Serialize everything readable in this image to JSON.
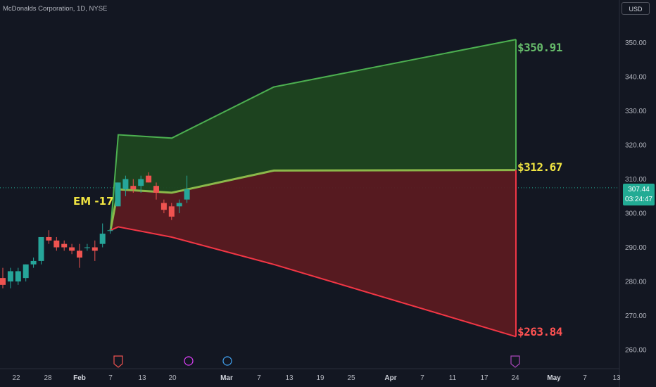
{
  "header": {
    "symbol_title": "McDonalds Corporation, 1D, NYSE",
    "currency": "USD"
  },
  "price_tag": {
    "price": "307.44",
    "countdown": "03:24:47"
  },
  "labels": {
    "em": "EM -17",
    "upper": "$350.91",
    "middle": "$312.67",
    "lower": "$263.84"
  },
  "colors": {
    "background": "#131722",
    "upper_band_fill": "#1e4620",
    "lower_band_fill": "#5a1a21",
    "upper_line": "#4caf50",
    "middle_line": "#8bb84a",
    "lower_line": "#f23645",
    "bull_candle": "#26a69a",
    "bear_candle": "#ef5350",
    "upper_label": "#66bb6a",
    "middle_label": "#f0e442",
    "lower_label": "#ff5252"
  },
  "chart_data": {
    "type": "candlestick",
    "title": "McDonalds Corporation, 1D, NYSE",
    "ylim": [
      255,
      360
    ],
    "y_ticks": [
      "260.00",
      "270.00",
      "280.00",
      "290.00",
      "300.00",
      "310.00",
      "320.00",
      "330.00",
      "340.00",
      "350.00"
    ],
    "x_ticks": [
      "22",
      "28",
      "Feb",
      "7",
      "13",
      "20",
      "Mar",
      "7",
      "13",
      "19",
      "25",
      "Apr",
      "7",
      "11",
      "17",
      "24",
      "May",
      "7",
      "13"
    ],
    "candles": [
      {
        "o": 281,
        "h": 284,
        "l": 278,
        "c": 279
      },
      {
        "o": 280,
        "h": 284,
        "l": 278,
        "c": 283
      },
      {
        "o": 280,
        "h": 284,
        "l": 279,
        "c": 283
      },
      {
        "o": 281,
        "h": 285,
        "l": 280,
        "c": 285
      },
      {
        "o": 285,
        "h": 287,
        "l": 284,
        "c": 286
      },
      {
        "o": 286,
        "h": 293,
        "l": 285,
        "c": 293
      },
      {
        "o": 293,
        "h": 295,
        "l": 291,
        "c": 292
      },
      {
        "o": 292,
        "h": 293,
        "l": 289,
        "c": 290
      },
      {
        "o": 291,
        "h": 292,
        "l": 289,
        "c": 290
      },
      {
        "o": 290,
        "h": 291,
        "l": 288,
        "c": 289
      },
      {
        "o": 289,
        "h": 291,
        "l": 284,
        "c": 287
      },
      {
        "o": 290,
        "h": 291,
        "l": 289,
        "c": 290
      },
      {
        "o": 290,
        "h": 292,
        "l": 286,
        "c": 289
      },
      {
        "o": 291,
        "h": 297,
        "l": 290,
        "c": 294
      },
      {
        "o": 295,
        "h": 296,
        "l": 294,
        "c": 295
      },
      {
        "o": 302,
        "h": 309,
        "l": 302,
        "c": 309
      },
      {
        "o": 307,
        "h": 311,
        "l": 305,
        "c": 310
      },
      {
        "o": 308,
        "h": 310,
        "l": 306,
        "c": 307
      },
      {
        "o": 308,
        "h": 311,
        "l": 306,
        "c": 310
      },
      {
        "o": 311,
        "h": 312,
        "l": 309,
        "c": 309
      },
      {
        "o": 308,
        "h": 309,
        "l": 304,
        "c": 306
      },
      {
        "o": 303,
        "h": 304,
        "l": 300,
        "c": 301
      },
      {
        "o": 302,
        "h": 303,
        "l": 298,
        "c": 299
      },
      {
        "o": 302,
        "h": 304,
        "l": 300,
        "c": 303
      },
      {
        "o": 304,
        "h": 311,
        "l": 303,
        "c": 307
      }
    ],
    "bands": {
      "upper": [
        295,
        323,
        322,
        337,
        350.91
      ],
      "middle": [
        295,
        307,
        306,
        312.5,
        312.67
      ],
      "lower": [
        295,
        296,
        293,
        285,
        263.84
      ]
    },
    "annotation": "EM -17",
    "event_markers": [
      "E",
      "lightning",
      "D",
      "E"
    ],
    "current_price": 307.44
  }
}
